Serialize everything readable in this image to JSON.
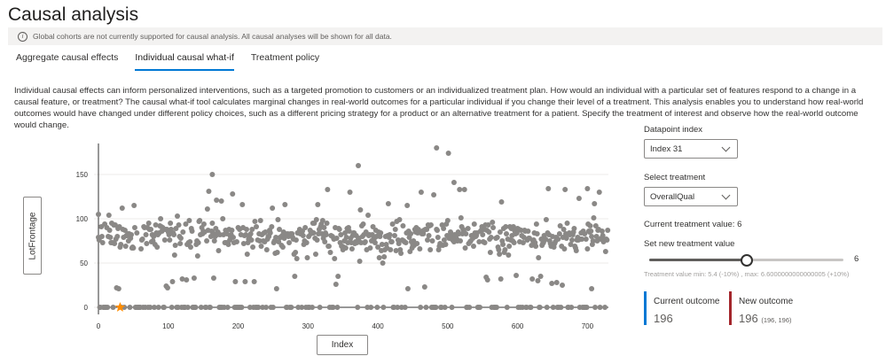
{
  "page": {
    "title": "Causal analysis"
  },
  "banner": {
    "icon": "info-icon",
    "text": "Global cohorts are not currently supported for causal analysis. All causal analyses will be shown for all data."
  },
  "tabs": [
    {
      "label": "Aggregate causal effects",
      "active": false
    },
    {
      "label": "Individual causal what-if",
      "active": true
    },
    {
      "label": "Treatment policy",
      "active": false
    }
  ],
  "description": "Individual causal effects can inform personalized interventions, such as a targeted promotion to customers or an individualized treatment plan. How would an individual with a particular set of features respond to a change in a causal feature, or treatment? The causal what-if tool calculates marginal changes in real-world outcomes for a particular individual if you change their level of a treatment. This analysis enables you to understand how real-world outcomes would have changed under different policy choices, such as a different pricing strategy for a product or an alternative treatment for a patient. Specify the treatment of interest and observe how the real-world outcome would change.",
  "controls": {
    "datapoint_label": "Datapoint index",
    "datapoint_value": "Index 31",
    "treatment_label": "Select treatment",
    "treatment_value": "OverallQual",
    "current_treatment": "Current treatment value: 6",
    "set_new_label": "Set new treatment value",
    "slider_value": "6",
    "slider_fraction": 0.5,
    "slider_hint": "Treatment value min: 5.4 (-10%) , max: 6.6000000000000005 (+10%)"
  },
  "outcomes": {
    "current_label": "Current outcome",
    "current_value": "196",
    "new_label": "New outcome",
    "new_value": "196",
    "new_range": "(196, 196)",
    "current_color": "#0078d4",
    "new_color": "#a4262c"
  },
  "chart_data": {
    "type": "scatter",
    "xlabel": "Index",
    "ylabel": "LotFrontage",
    "xlim": [
      0,
      730
    ],
    "ylim": [
      0,
      185
    ],
    "xticks": [
      0,
      100,
      200,
      300,
      400,
      500,
      600,
      700
    ],
    "yticks": [
      0,
      50,
      100,
      150
    ],
    "point_color": "#8a8886",
    "highlight": {
      "x": 31,
      "y": 0,
      "color": "#ff8c00",
      "label": "Index 31"
    },
    "notable_points": [
      {
        "x": 0,
        "y": 105
      },
      {
        "x": 163,
        "y": 150
      },
      {
        "x": 372,
        "y": 160
      },
      {
        "x": 484,
        "y": 180
      },
      {
        "x": 501,
        "y": 174
      },
      {
        "x": 509,
        "y": 141
      },
      {
        "x": 700,
        "y": 134
      },
      {
        "x": 706,
        "y": 21
      }
    ],
    "n_points": 730,
    "typical_range": [
      21,
      130
    ],
    "zero_band_share": 0.18
  }
}
